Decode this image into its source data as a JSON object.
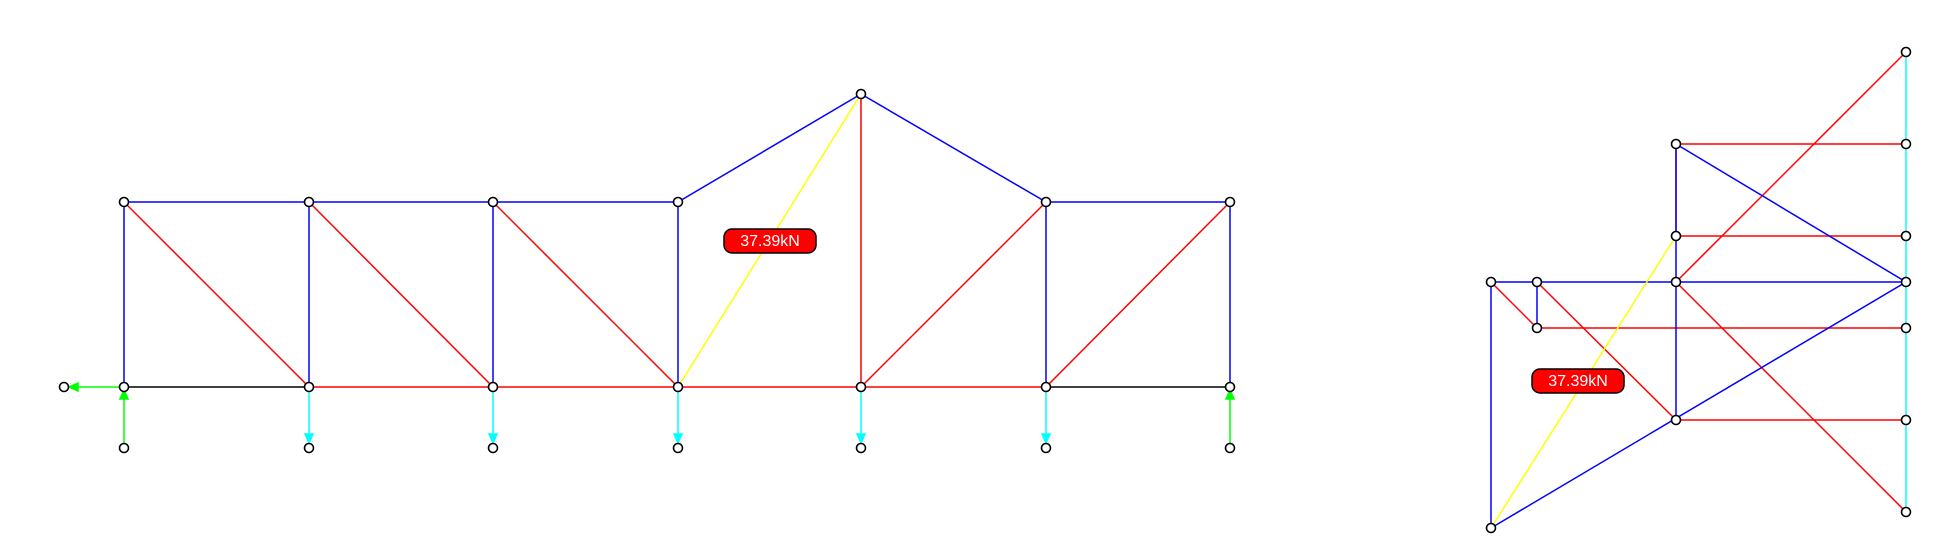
{
  "colors": {
    "compression": "#0000ff",
    "tension": "#ff0000",
    "selected_member": "#ffff00",
    "zero_force": "#000000",
    "applied_load": "#00ffff",
    "reaction": "#00ff00",
    "node_fill": "#ffffff",
    "node_stroke": "#000000",
    "badge_fill": "#ff0000",
    "badge_text": "#ffffff"
  },
  "truss": {
    "node_count": 15,
    "member_count": 27,
    "loaded_nodes": 5,
    "reaction_supports": [
      "pin",
      "roller"
    ],
    "force_label": "37.39kN"
  },
  "force_polygon": {
    "force_label": "37.39kN"
  }
}
